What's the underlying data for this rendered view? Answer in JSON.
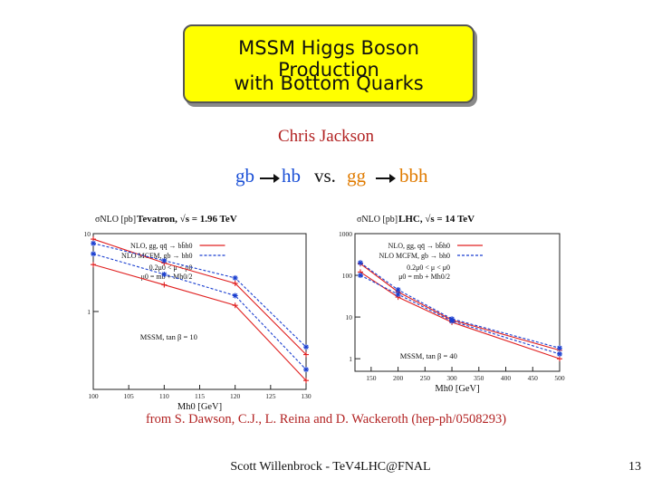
{
  "title": {
    "line1": "MSSM Higgs Boson Production",
    "line2": "with Bottom Quarks"
  },
  "author": "Chris Jackson",
  "process": {
    "a_from": "gb",
    "a_to": "hb",
    "vs": "vs.",
    "b_from": "gg",
    "b_to": "bbh"
  },
  "reference": "from S. Dawson, C.J., L. Reina and D. Wackeroth (hep-ph/0508293)",
  "footer": "Scott Willenbrock - TeV4LHC@FNAL",
  "page_number": "13",
  "colors": {
    "title_bg": "#ffff00",
    "author": "#b22222",
    "gb_hb": "#1a4fd6",
    "gg_bbh": "#e07b00",
    "nlo": "#e02020",
    "mcfm": "#1a3fd0"
  },
  "chart_data": [
    {
      "type": "line",
      "ylabel": "σNLO [pb]",
      "xlabel": "Mh0 [GeV]",
      "header": "Tevatron, √s = 1.96 TeV",
      "legend": [
        "NLO, gg, qq̄ → bb̄h0",
        "NLO MCFM, gb → bh0"
      ],
      "scale_text": [
        "0.2μ0 < μ < μ0",
        "μ0 = mb + Mh0/2"
      ],
      "annotation": "MSSM, tan β = 10",
      "yscale": "log",
      "xlim": [
        100,
        130
      ],
      "ylim": [
        0.1,
        10
      ],
      "x_ticks": [
        100,
        105,
        110,
        115,
        120,
        125,
        130
      ],
      "y_tick_labels": [
        {
          "value": 10,
          "label": "10"
        },
        {
          "value": 1,
          "label": "1"
        }
      ],
      "x": [
        100,
        110,
        120,
        130
      ],
      "series": [
        {
          "name": "NLO, gg, qq̄ → bb̄h0",
          "style": "upper",
          "values": [
            8.5,
            4.2,
            2.3,
            0.28
          ]
        },
        {
          "name": "NLO, gg, qq̄ → bb̄h0",
          "style": "lower",
          "values": [
            4.0,
            2.2,
            1.2,
            0.13
          ]
        },
        {
          "name": "NLO MCFM, gb → bh0",
          "style": "upper",
          "values": [
            7.5,
            4.5,
            2.7,
            0.35
          ]
        },
        {
          "name": "NLO MCFM, gb → bh0",
          "style": "lower",
          "values": [
            5.5,
            3.0,
            1.6,
            0.18
          ]
        }
      ]
    },
    {
      "type": "line",
      "ylabel": "σNLO [pb]",
      "xlabel": "Mh0 [GeV]",
      "header": "LHC, √s = 14 TeV",
      "legend": [
        "NLO, gg, qq̄ → bb̄h0",
        "NLO MCFM, gb → bh0"
      ],
      "scale_text": [
        "0.2μ0 < μ < μ0",
        "μ0 = mb + Mh0/2"
      ],
      "annotation": "MSSM, tan β = 40",
      "yscale": "log",
      "xlim": [
        120,
        500
      ],
      "ylim": [
        0.5,
        1000
      ],
      "x_ticks": [
        150,
        200,
        250,
        300,
        350,
        400,
        450,
        500
      ],
      "y_tick_labels": [
        {
          "value": 1000,
          "label": "1000"
        },
        {
          "value": 100,
          "label": "100"
        },
        {
          "value": 10,
          "label": "10"
        },
        {
          "value": 1,
          "label": "1"
        }
      ],
      "x": [
        130,
        200,
        300,
        500
      ],
      "series": [
        {
          "name": "NLO, gg, qq̄ → bb̄h0",
          "style": "upper",
          "values": [
            190,
            40,
            8.5,
            1.6
          ]
        },
        {
          "name": "NLO, gg, qq̄ → bb̄h0",
          "style": "lower",
          "values": [
            120,
            30,
            7.5,
            1.0
          ]
        },
        {
          "name": "NLO MCFM, gb → bh0",
          "style": "upper",
          "values": [
            200,
            45,
            9.0,
            1.8
          ]
        },
        {
          "name": "NLO MCFM, gb → bh0",
          "style": "lower",
          "values": [
            100,
            35,
            8.0,
            1.3
          ]
        }
      ]
    }
  ]
}
